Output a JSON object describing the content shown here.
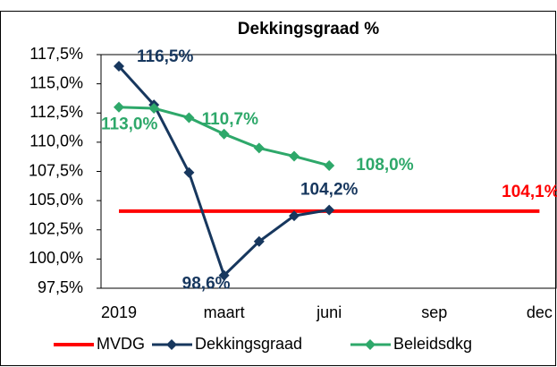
{
  "chart_data": {
    "type": "line",
    "title": "Dekkingsgraad %",
    "categories": [
      "2019",
      null,
      null,
      "maart",
      null,
      null,
      "juni",
      null,
      null,
      "sep",
      null,
      null,
      "dec"
    ],
    "ylim": [
      97.5,
      117.5
    ],
    "yticks": [
      {
        "value": 97.5,
        "label": "97,5%"
      },
      {
        "value": 100,
        "label": "100,0%"
      },
      {
        "value": 102.5,
        "label": "102,5%"
      },
      {
        "value": 105,
        "label": "105,0%"
      },
      {
        "value": 107.5,
        "label": "107,5%"
      },
      {
        "value": 110,
        "label": "110,0%"
      },
      {
        "value": 112.5,
        "label": "112,5%"
      },
      {
        "value": 115,
        "label": "115,0%"
      },
      {
        "value": 117.5,
        "label": "117,5%"
      }
    ],
    "grid": false,
    "series": [
      {
        "name": "MVDG",
        "color": "#ff0000",
        "marker": false,
        "values": [
          104.1,
          104.1,
          104.1,
          104.1,
          104.1,
          104.1,
          104.1,
          104.1,
          104.1,
          104.1,
          104.1,
          104.1,
          104.1
        ],
        "value_labels": [
          null,
          null,
          null,
          null,
          null,
          null,
          null,
          null,
          null,
          null,
          null,
          null,
          "104,1%"
        ]
      },
      {
        "name": "Dekkingsgraad",
        "color": "#17375e",
        "marker": true,
        "values": [
          116.5,
          113.2,
          107.4,
          98.6,
          101.5,
          103.7,
          104.2,
          null,
          null,
          null,
          null,
          null,
          null
        ],
        "value_labels": [
          "116,5%",
          null,
          null,
          "98,6%",
          null,
          null,
          "104,2%",
          null,
          null,
          null,
          null,
          null,
          null
        ]
      },
      {
        "name": "Beleidsdkg",
        "color": "#2ea86a",
        "marker": true,
        "values": [
          113.0,
          112.9,
          112.1,
          110.7,
          109.5,
          108.8,
          108.0,
          null,
          null,
          null,
          null,
          null,
          null
        ],
        "value_labels": [
          "113,0%",
          null,
          null,
          "110,7%",
          null,
          null,
          "108,0%",
          null,
          null,
          null,
          null,
          null,
          null
        ]
      }
    ]
  }
}
